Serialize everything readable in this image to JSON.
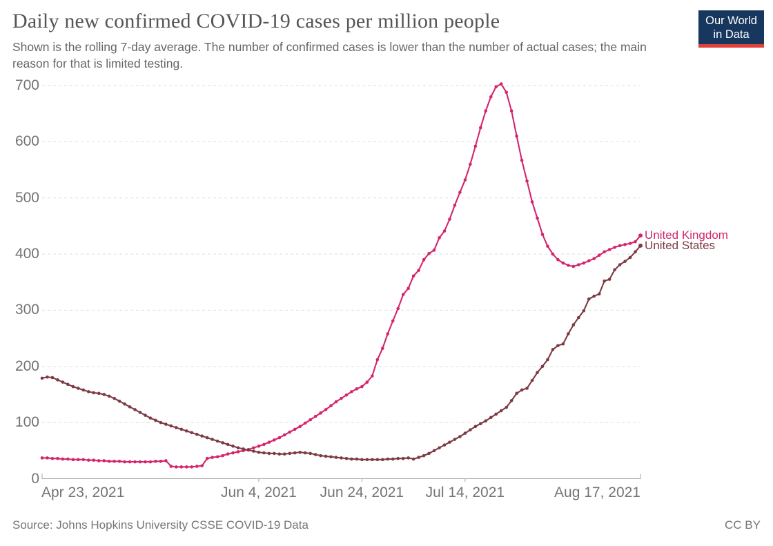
{
  "header": {
    "title": "Daily new confirmed COVID-19 cases per million people",
    "subtitle": "Shown is the rolling 7-day average. The number of confirmed cases is lower than the number of actual cases; the main reason for that is limited testing.",
    "logo": {
      "line1": "Our World",
      "line2": "in Data"
    }
  },
  "footer": {
    "source": "Source: Johns Hopkins University CSSE COVID-19 Data",
    "license": "CC BY"
  },
  "colors": {
    "united_kingdom": "#D4246C",
    "united_states": "#7D3A42",
    "grid": "#DDDDDD",
    "axis": "#A5A5A5",
    "tick_text": "#737373",
    "logo_bg": "#18375F",
    "logo_stripe": "#E0423B"
  },
  "chart_data": {
    "type": "line",
    "title": "Daily new confirmed COVID-19 cases per million people",
    "x_start_date": "Apr 23, 2021",
    "x_end_date": "Aug 17, 2021",
    "x_unit": "day",
    "xlim_days": [
      0,
      116
    ],
    "ylim": [
      0,
      700
    ],
    "grid": true,
    "legend_position": "right-of-line-ends",
    "marker": "point-per-day",
    "yticks": [
      0,
      100,
      200,
      300,
      400,
      500,
      600,
      700
    ],
    "xticks": [
      {
        "label": "Apr 23, 2021",
        "day": 0
      },
      {
        "label": "Jun 4, 2021",
        "day": 42
      },
      {
        "label": "Jun 24, 2021",
        "day": 62
      },
      {
        "label": "Jul 14, 2021",
        "day": 82
      },
      {
        "label": "Aug 17, 2021",
        "day": 116
      }
    ],
    "series": [
      {
        "name": "United Kingdom",
        "color": "#D4246C",
        "values": [
          37,
          37,
          36,
          36,
          35,
          35,
          34,
          34,
          34,
          33,
          33,
          32,
          32,
          31,
          31,
          31,
          30,
          30,
          30,
          30,
          30,
          30,
          31,
          31,
          32,
          22,
          21,
          21,
          21,
          21,
          22,
          23,
          36,
          38,
          39,
          41,
          44,
          46,
          48,
          50,
          52,
          55,
          58,
          61,
          65,
          69,
          73,
          78,
          83,
          88,
          93,
          99,
          105,
          111,
          117,
          123,
          130,
          137,
          143,
          149,
          155,
          160,
          164,
          172,
          183,
          212,
          232,
          258,
          281,
          303,
          328,
          339,
          361,
          371,
          390,
          401,
          407,
          429,
          441,
          462,
          487,
          510,
          532,
          560,
          592,
          625,
          655,
          680,
          698,
          703,
          688,
          655,
          610,
          567,
          530,
          493,
          464,
          435,
          414,
          400,
          390,
          384,
          380,
          378,
          381,
          384,
          388,
          392,
          398,
          404,
          408,
          412,
          415,
          417,
          419,
          422,
          433
        ]
      },
      {
        "name": "United States",
        "color": "#7D3A42",
        "values": [
          179,
          181,
          180,
          176,
          172,
          168,
          164,
          161,
          158,
          155,
          153,
          152,
          150,
          147,
          143,
          138,
          133,
          128,
          123,
          118,
          113,
          108,
          104,
          100,
          97,
          94,
          91,
          88,
          85,
          82,
          79,
          76,
          73,
          70,
          67,
          64,
          61,
          58,
          55,
          53,
          51,
          49,
          47,
          46,
          45,
          45,
          44,
          44,
          45,
          46,
          47,
          46,
          45,
          43,
          41,
          40,
          39,
          38,
          37,
          36,
          35,
          35,
          34,
          34,
          34,
          34,
          34,
          35,
          35,
          36,
          36,
          37,
          35,
          38,
          41,
          45,
          50,
          55,
          60,
          65,
          70,
          75,
          81,
          87,
          93,
          98,
          103,
          109,
          115,
          121,
          127,
          139,
          152,
          158,
          161,
          175,
          189,
          200,
          212,
          230,
          237,
          240,
          258,
          274,
          287,
          299,
          320,
          325,
          329,
          352,
          355,
          372,
          381,
          387,
          394,
          404,
          415
        ]
      }
    ]
  }
}
